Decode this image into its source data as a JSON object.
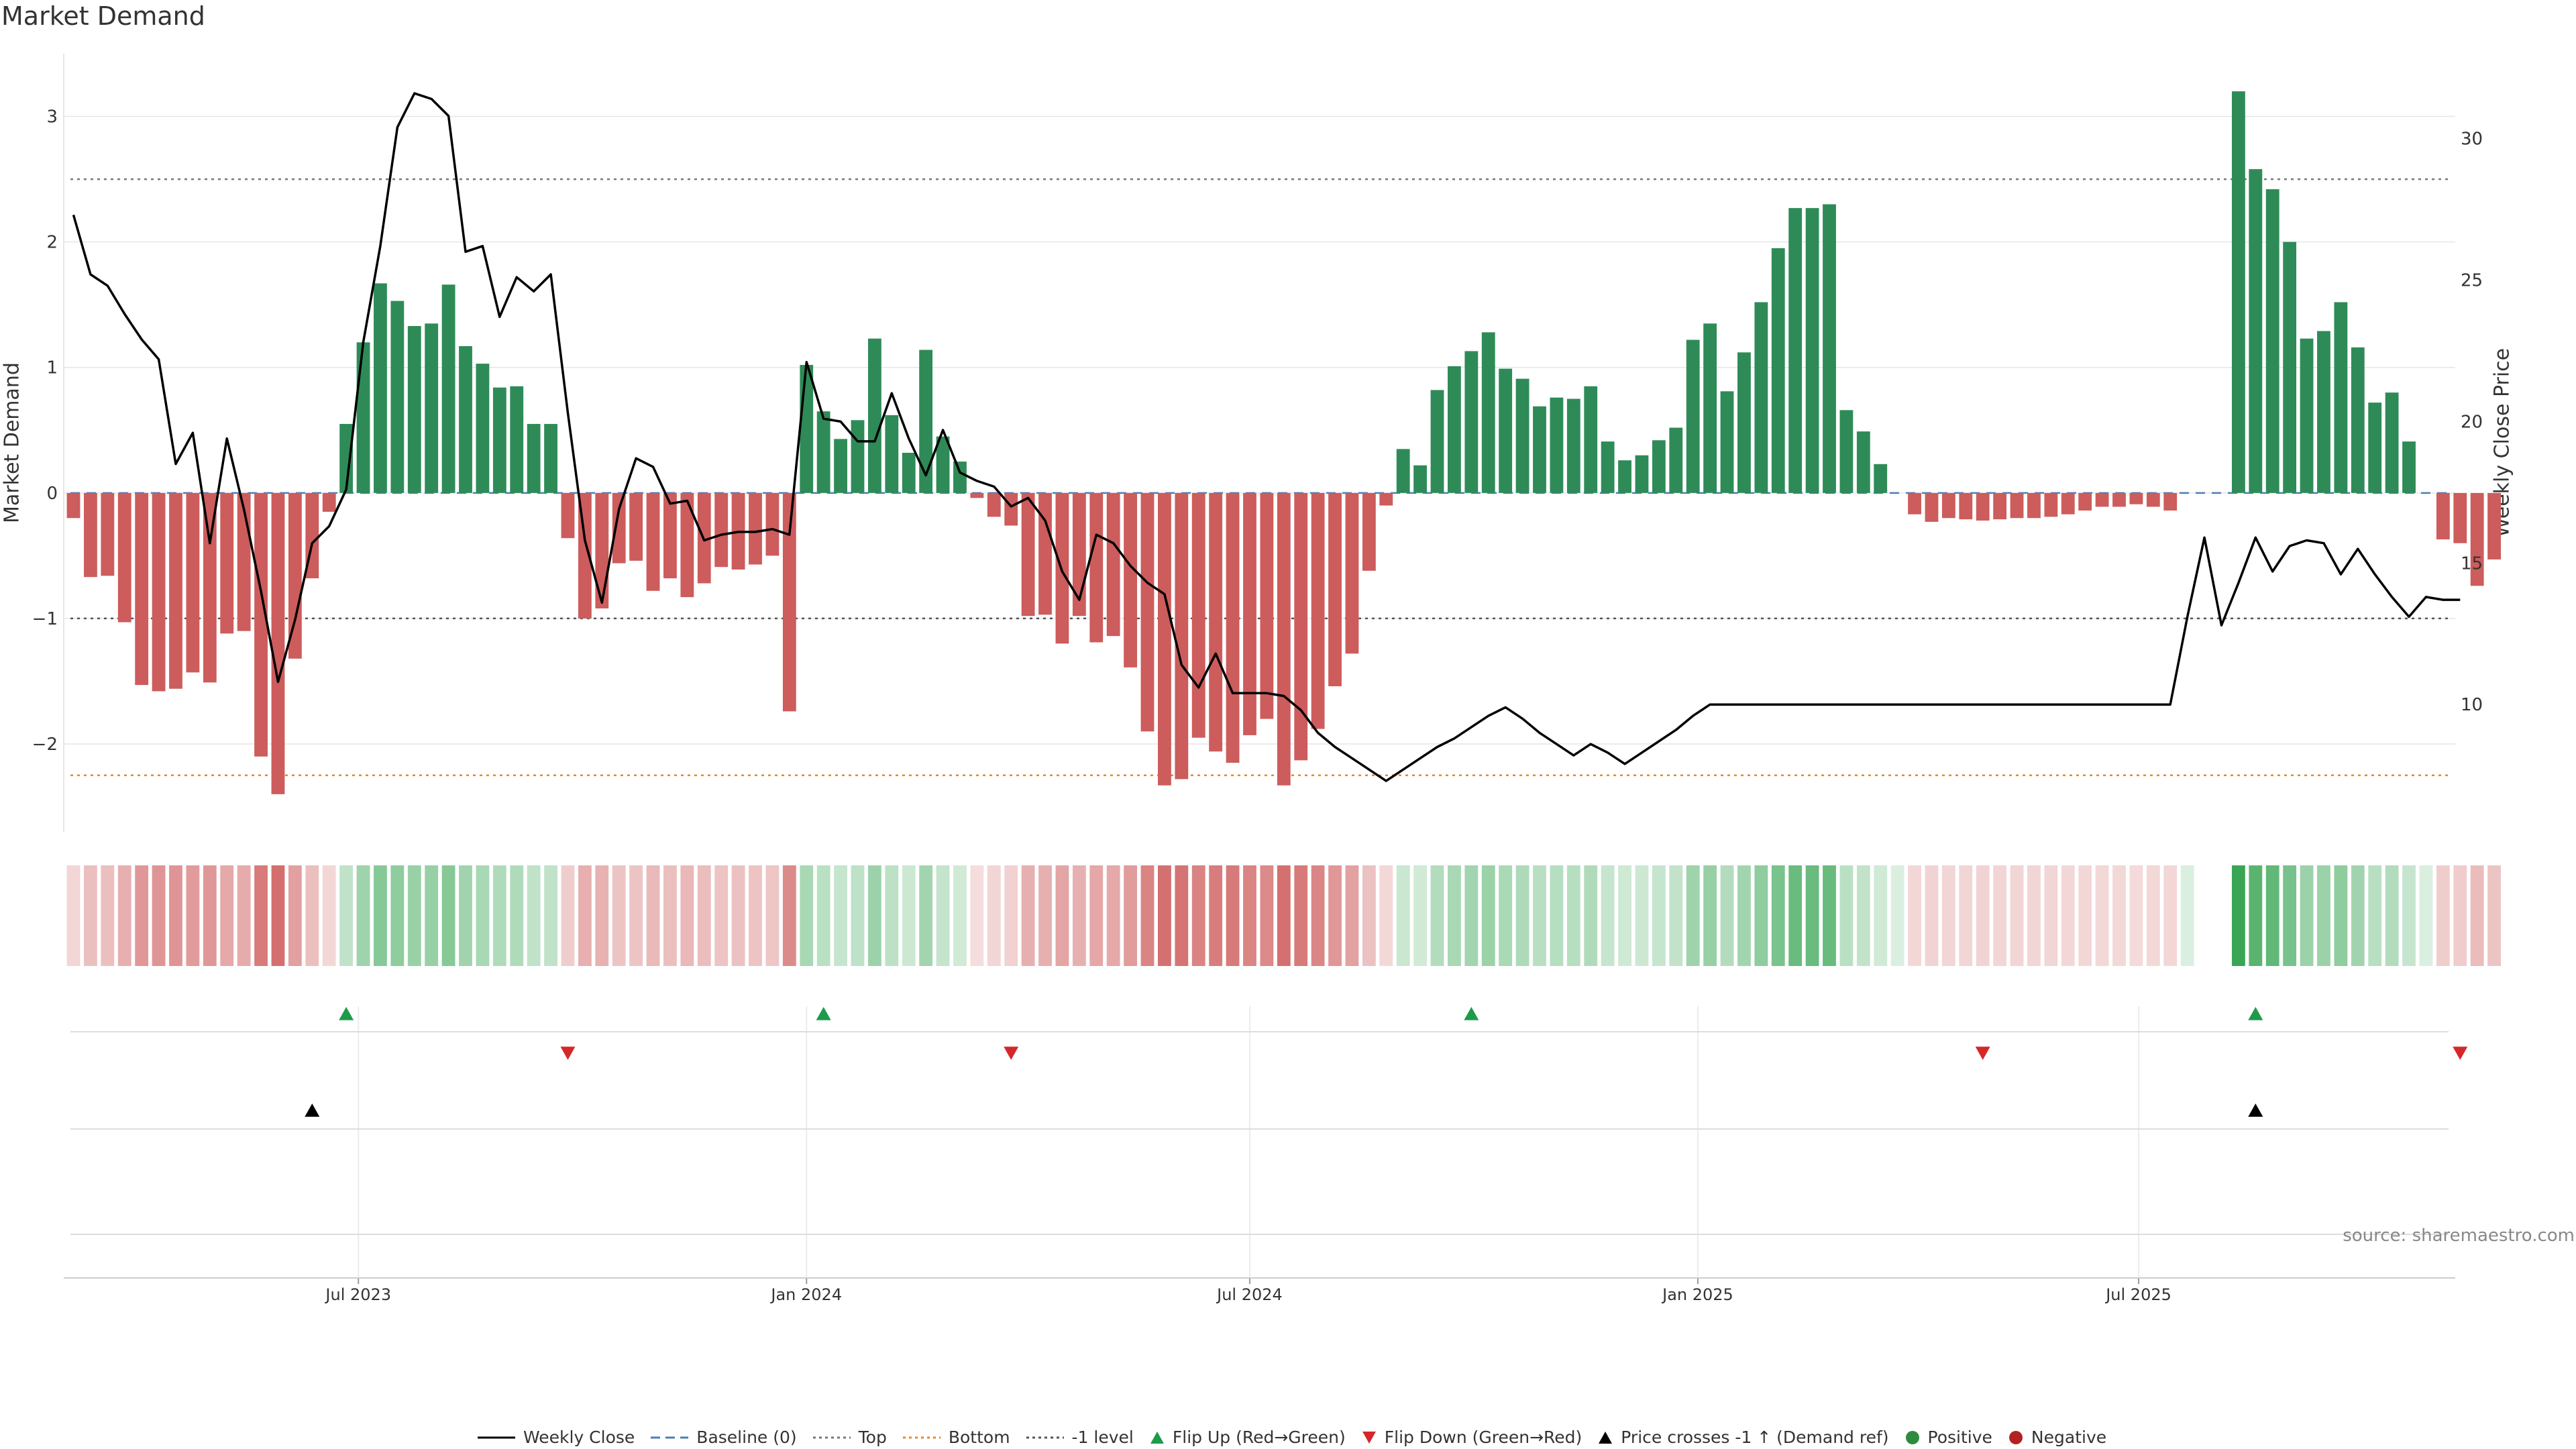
{
  "title": "Market Demand",
  "ylabel_left": "Market Demand",
  "ylabel_right": "Weekly Close Price",
  "source": "source: sharemaestro.com",
  "legend": [
    {
      "label": "Weekly Close",
      "kind": "line",
      "color": "#000000"
    },
    {
      "label": "Baseline (0)",
      "kind": "dash",
      "color": "#4a7fb5"
    },
    {
      "label": "Top",
      "kind": "dot",
      "color": "#777777"
    },
    {
      "label": "Bottom",
      "kind": "dot",
      "color": "#e8872a"
    },
    {
      "label": "-1 level",
      "kind": "dot",
      "color": "#555555"
    },
    {
      "label": "Flip Up (Red→Green)",
      "kind": "tri-up",
      "color": "#1e9a4a"
    },
    {
      "label": "Flip Down (Green→Red)",
      "kind": "tri-down",
      "color": "#d62728"
    },
    {
      "label": "Price crosses -1 ↑ (Demand ref)",
      "kind": "tri-up",
      "color": "#000000"
    },
    {
      "label": "Positive",
      "kind": "circle",
      "color": "#2e8b3e"
    },
    {
      "label": "Negative",
      "kind": "circle",
      "color": "#b22222"
    }
  ],
  "colors": {
    "positive": "#2e8b57",
    "negative": "#cd5c5c",
    "heat_pos": "#3aa655",
    "heat_neg": "#c84848",
    "grid": "#e6e6e6"
  },
  "chart_data": {
    "type": "bar+line",
    "title": "Market Demand",
    "start_date": "2023-03-06",
    "week_interval_days": 7,
    "x_tick_labels": [
      "Jul 2023",
      "Jan 2024",
      "Jul 2024",
      "Jan 2025",
      "Jul 2025"
    ],
    "x_tick_dates": [
      "2023-07-01",
      "2024-01-01",
      "2024-07-01",
      "2025-01-01",
      "2025-07-01"
    ],
    "x_range": [
      "2023-03-02",
      "2025-11-08"
    ],
    "left_axis": {
      "label": "Market Demand",
      "ylim": [
        -2.7,
        3.5
      ],
      "ticks": [
        3,
        2,
        1,
        0,
        -1,
        -2
      ],
      "tick_labels": [
        "3",
        "2",
        "1",
        "0",
        "−1",
        "−2"
      ]
    },
    "right_axis": {
      "label": "Weekly Close Price",
      "ylim": [
        5.5,
        33.0
      ],
      "ticks": [
        30,
        25,
        20,
        15,
        10
      ],
      "tick_labels": [
        "30",
        "25",
        "20",
        "15",
        "10"
      ]
    },
    "reference_lines": {
      "top": 2.5,
      "bottom": -2.25,
      "minus_one": -1.0,
      "baseline": 0
    },
    "demand": [
      -0.2,
      -0.67,
      -0.66,
      -1.03,
      -1.53,
      -1.58,
      -1.56,
      -1.43,
      -1.51,
      -1.12,
      -1.1,
      -2.1,
      -2.4,
      -1.32,
      -0.68,
      -0.15,
      0.55,
      1.2,
      1.67,
      1.53,
      1.33,
      1.35,
      1.66,
      1.17,
      1.03,
      0.84,
      0.85,
      0.55,
      0.55,
      -0.36,
      -1.0,
      -0.92,
      -0.56,
      -0.54,
      -0.78,
      -0.68,
      -0.83,
      -0.72,
      -0.59,
      -0.61,
      -0.57,
      -0.5,
      -1.74,
      1.02,
      0.65,
      0.43,
      0.58,
      1.23,
      0.62,
      0.32,
      1.14,
      0.45,
      0.25,
      -0.04,
      -0.19,
      -0.26,
      -0.98,
      -0.97,
      -1.2,
      -0.98,
      -1.19,
      -1.14,
      -1.39,
      -1.9,
      -2.33,
      -2.28,
      -1.95,
      -2.06,
      -2.15,
      -1.93,
      -1.8,
      -2.33,
      -2.13,
      -1.88,
      -1.54,
      -1.28,
      -0.62,
      -0.1,
      0.35,
      0.22,
      0.82,
      1.01,
      1.13,
      1.28,
      0.99,
      0.91,
      0.69,
      0.76,
      0.75,
      0.85,
      0.41,
      0.26,
      0.3,
      0.42,
      0.52,
      1.22,
      1.35,
      0.81,
      1.12,
      1.52,
      1.95,
      2.27,
      2.27,
      2.3,
      0.66,
      0.49,
      0.23,
      0,
      -0.17,
      -0.23,
      -0.2,
      -0.21,
      -0.22,
      -0.21,
      -0.2,
      -0.2,
      -0.19,
      -0.17,
      -0.14,
      -0.11,
      -0.11,
      -0.09,
      -0.11,
      -0.14,
      0,
      0,
      0,
      3.2,
      2.58,
      2.42,
      2.0,
      1.23,
      1.29,
      1.52,
      1.16,
      0.72,
      0.8,
      0.41,
      0,
      -0.37,
      -0.4,
      -0.74,
      -0.53
    ],
    "weekly_close": [
      27.3,
      25.2,
      24.8,
      23.8,
      22.9,
      22.2,
      18.5,
      19.6,
      15.7,
      19.4,
      16.9,
      14.0,
      10.8,
      13.0,
      15.7,
      16.3,
      17.6,
      22.8,
      26.2,
      30.4,
      31.6,
      31.4,
      30.8,
      26.0,
      26.2,
      23.7,
      25.1,
      24.6,
      25.2,
      20.3,
      15.8,
      13.6,
      16.9,
      18.7,
      18.4,
      17.1,
      17.2,
      15.8,
      16.0,
      16.1,
      16.1,
      16.2,
      16.0,
      22.1,
      20.1,
      20.0,
      19.3,
      19.3,
      21.0,
      19.4,
      18.1,
      19.7,
      18.2,
      17.9,
      17.7,
      17.0,
      17.3,
      16.5,
      14.7,
      13.7,
      16.0,
      15.7,
      14.9,
      14.3,
      13.9,
      11.4,
      10.6,
      11.8,
      10.4,
      10.4,
      10.4,
      10.3,
      9.8,
      9.0,
      8.5,
      8.1,
      7.7,
      7.3,
      7.7,
      8.1,
      8.5,
      8.8,
      9.2,
      9.6,
      9.9,
      9.5,
      9.0,
      8.6,
      8.2,
      8.6,
      8.3,
      7.9,
      8.3,
      8.7,
      9.1,
      9.6,
      10.0,
      10.0,
      10.0,
      10.0,
      10.0,
      10.0,
      10.0,
      10.0,
      10.0,
      10.0,
      10.0,
      10.0,
      10.0,
      10.0,
      10.0,
      10.0,
      10.0,
      10.0,
      10.0,
      10.0,
      10.0,
      10.0,
      10.0,
      10.0,
      10.0,
      10.0,
      10.0,
      10.0,
      13.1,
      15.9,
      12.8,
      14.3,
      15.9,
      14.7,
      15.6,
      15.8,
      15.7,
      14.6,
      15.5,
      14.6,
      13.8,
      13.1,
      13.8,
      13.7,
      13.7
    ],
    "heatmap": {
      "type": "heatmap",
      "row": "demand strength",
      "source_series": "demand"
    },
    "flip_up_weeks": [
      16,
      44,
      82,
      128
    ],
    "flip_down_weeks": [
      29,
      55,
      112,
      140
    ],
    "price_cross_weeks": [
      14,
      128
    ]
  }
}
